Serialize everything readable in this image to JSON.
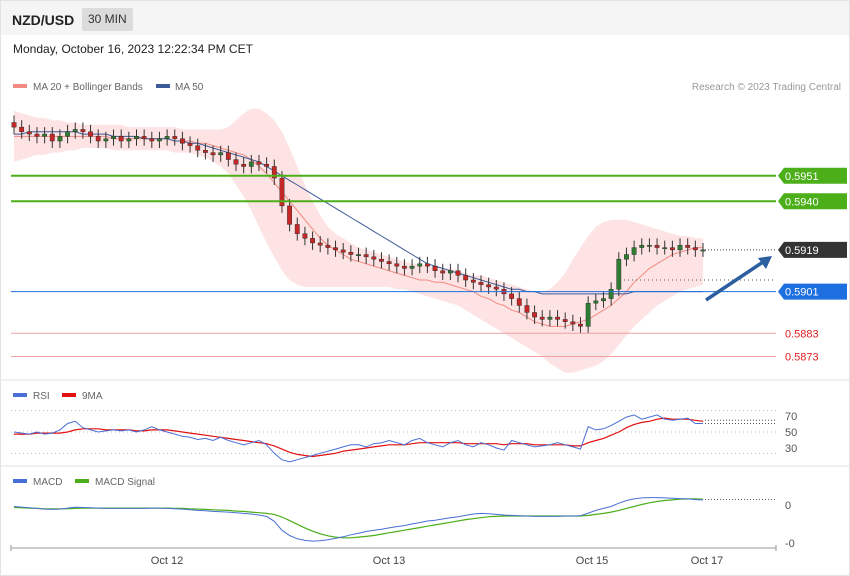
{
  "header": {
    "symbol": "NZD/USD",
    "timeframe": "30 MIN",
    "datetime": "Monday, October 16, 2023 12:22:34 PM CET"
  },
  "colors": {
    "up": "#2e7d32",
    "down": "#c62828",
    "ma20": "#f28b82",
    "ma50": "#3d5a99",
    "band_fill": "#fde3e3",
    "support": "#1e6fe0",
    "resistance_green": "#4caf1a",
    "red_levels": "#e02020",
    "arrow": "#2c5fa0"
  },
  "price_panel": {
    "legend": [
      {
        "label": "MA 20 + Bollinger Bands",
        "icon": "ma20-swatch"
      },
      {
        "label": "MA 50",
        "icon": "ma50-swatch"
      }
    ],
    "credit": "Research © 2023 Trading Central",
    "levels": [
      {
        "value": "0.5951",
        "style": "green-solid-fill"
      },
      {
        "value": "0.5940",
        "style": "green-solid-fill"
      },
      {
        "value": "0.5919",
        "style": "dark-current"
      },
      {
        "value": "0.5901",
        "style": "blue-solid-fill"
      },
      {
        "value": "0.5883",
        "style": "red-text"
      },
      {
        "value": "0.5873",
        "style": "red-text"
      }
    ]
  },
  "rsi_panel": {
    "legend": [
      {
        "label": "RSI"
      },
      {
        "label": "9MA"
      }
    ],
    "ticks": [
      "70",
      "50",
      "30"
    ]
  },
  "macd_panel": {
    "legend": [
      {
        "label": "MACD"
      },
      {
        "label": "MACD Signal"
      }
    ],
    "ticks": [
      "0",
      "-0"
    ]
  },
  "x_axis": {
    "labels": [
      "Oct 12",
      "Oct 13",
      "Oct 15",
      "Oct 17"
    ]
  },
  "chart_data": [
    {
      "type": "line",
      "name": "price",
      "ylim": [
        0.5865,
        0.5985
      ],
      "close": [
        0.5972,
        0.597,
        0.5969,
        0.5968,
        0.5969,
        0.5966,
        0.5968,
        0.597,
        0.5971,
        0.597,
        0.5968,
        0.5966,
        0.5967,
        0.5968,
        0.5966,
        0.5967,
        0.5968,
        0.5967,
        0.5966,
        0.5967,
        0.5968,
        0.5967,
        0.5965,
        0.5964,
        0.5962,
        0.5961,
        0.596,
        0.5961,
        0.5958,
        0.5956,
        0.5955,
        0.5957,
        0.5956,
        0.5955,
        0.595,
        0.5938,
        0.593,
        0.5926,
        0.5924,
        0.5922,
        0.5921,
        0.592,
        0.5919,
        0.5918,
        0.5917,
        0.5917,
        0.5916,
        0.5915,
        0.5914,
        0.5913,
        0.5912,
        0.5911,
        0.5912,
        0.5913,
        0.5912,
        0.591,
        0.5909,
        0.591,
        0.5908,
        0.5906,
        0.5905,
        0.5904,
        0.5903,
        0.5902,
        0.59,
        0.5898,
        0.5895,
        0.5892,
        0.589,
        0.5889,
        0.589,
        0.5889,
        0.5888,
        0.5887,
        0.5886,
        0.5896,
        0.5897,
        0.5898,
        0.5902,
        0.5915,
        0.5917,
        0.592,
        0.5921,
        0.5921,
        0.592,
        0.592,
        0.5919,
        0.5921,
        0.592,
        0.5919,
        0.5919
      ],
      "ma20": [
        0.5968,
        0.5968,
        0.5968,
        0.5968,
        0.5968,
        0.5968,
        0.5968,
        0.5968,
        0.5968,
        0.5968,
        0.5968,
        0.5968,
        0.5968,
        0.5967,
        0.5967,
        0.5967,
        0.5967,
        0.5967,
        0.5967,
        0.5967,
        0.5967,
        0.5966,
        0.5966,
        0.5966,
        0.5965,
        0.5965,
        0.5964,
        0.5963,
        0.5962,
        0.5961,
        0.596,
        0.5958,
        0.5955,
        0.5952,
        0.5948,
        0.5944,
        0.594,
        0.5936,
        0.5932,
        0.5928,
        0.5924,
        0.5921,
        0.5919,
        0.5917,
        0.5915,
        0.5914,
        0.5913,
        0.5912,
        0.5911,
        0.591,
        0.5909,
        0.5908,
        0.5907,
        0.5906,
        0.5906,
        0.5905,
        0.5905,
        0.5904,
        0.5903,
        0.5902,
        0.5901,
        0.5899,
        0.5898,
        0.5896,
        0.5895,
        0.5893,
        0.5892,
        0.589,
        0.5888,
        0.5887,
        0.5886,
        0.5886,
        0.5886,
        0.5887,
        0.5888,
        0.5889,
        0.5891,
        0.5893,
        0.5895,
        0.5898,
        0.5901,
        0.5905,
        0.5908,
        0.5911,
        0.5913,
        0.5915,
        0.5917,
        0.5918,
        0.5919,
        0.592,
        0.592
      ],
      "bb_upper": [
        0.5979,
        0.5978,
        0.5977,
        0.5976,
        0.5976,
        0.5975,
        0.5975,
        0.5974,
        0.5974,
        0.5973,
        0.5973,
        0.5973,
        0.5973,
        0.5973,
        0.5973,
        0.5972,
        0.5972,
        0.5972,
        0.5972,
        0.5972,
        0.5972,
        0.5972,
        0.5971,
        0.5971,
        0.5971,
        0.5971,
        0.5971,
        0.5971,
        0.5972,
        0.5975,
        0.5978,
        0.598,
        0.598,
        0.5978,
        0.5975,
        0.597,
        0.5963,
        0.5955,
        0.5947,
        0.594,
        0.5934,
        0.5929,
        0.5926,
        0.5924,
        0.5922,
        0.592,
        0.5919,
        0.5918,
        0.5917,
        0.5916,
        0.5915,
        0.5914,
        0.5913,
        0.5913,
        0.5912,
        0.5912,
        0.5911,
        0.5911,
        0.591,
        0.5909,
        0.5908,
        0.5908,
        0.5907,
        0.5906,
        0.5905,
        0.5904,
        0.5903,
        0.5902,
        0.5901,
        0.5901,
        0.5902,
        0.5905,
        0.5909,
        0.5915,
        0.592,
        0.5925,
        0.5929,
        0.5931,
        0.5932,
        0.5932,
        0.5932,
        0.5931,
        0.593,
        0.5929,
        0.5928,
        0.5927,
        0.5926,
        0.5925,
        0.5925,
        0.5924,
        0.5924
      ],
      "bb_lower": [
        0.5957,
        0.5958,
        0.5959,
        0.596,
        0.596,
        0.5961,
        0.5961,
        0.5962,
        0.5962,
        0.5963,
        0.5963,
        0.5963,
        0.5963,
        0.5962,
        0.5962,
        0.5962,
        0.5962,
        0.5962,
        0.5962,
        0.5962,
        0.5962,
        0.5961,
        0.5961,
        0.5961,
        0.596,
        0.5959,
        0.5957,
        0.5955,
        0.5952,
        0.5947,
        0.5942,
        0.5936,
        0.5929,
        0.5922,
        0.5916,
        0.591,
        0.5906,
        0.5904,
        0.5903,
        0.5903,
        0.5903,
        0.5903,
        0.5903,
        0.5903,
        0.5903,
        0.5903,
        0.5903,
        0.5903,
        0.5903,
        0.5903,
        0.5902,
        0.5902,
        0.5901,
        0.59,
        0.5899,
        0.5898,
        0.5897,
        0.5896,
        0.5895,
        0.5893,
        0.5891,
        0.5889,
        0.5887,
        0.5885,
        0.5883,
        0.5881,
        0.5879,
        0.5877,
        0.5875,
        0.5873,
        0.587,
        0.5868,
        0.5866,
        0.5866,
        0.5867,
        0.5868,
        0.5869,
        0.5871,
        0.5874,
        0.5878,
        0.5882,
        0.5886,
        0.5889,
        0.5892,
        0.5895,
        0.5897,
        0.5899,
        0.5901,
        0.5902,
        0.5903,
        0.5904
      ],
      "ma50": [
        0.5969,
        0.5969,
        0.597,
        0.597,
        0.597,
        0.597,
        0.597,
        0.597,
        0.597,
        0.5969,
        0.5969,
        0.5969,
        0.5969,
        0.5968,
        0.5968,
        0.5968,
        0.5968,
        0.5967,
        0.5967,
        0.5967,
        0.5967,
        0.5966,
        0.5966,
        0.5965,
        0.5965,
        0.5964,
        0.5963,
        0.5962,
        0.5961,
        0.596,
        0.5959,
        0.5958,
        0.5957,
        0.5955,
        0.5953,
        0.5951,
        0.5949,
        0.5947,
        0.5945,
        0.5943,
        0.5941,
        0.5939,
        0.5937,
        0.5935,
        0.5933,
        0.5931,
        0.5929,
        0.5927,
        0.5925,
        0.5923,
        0.5921,
        0.5919,
        0.5917,
        0.5915,
        0.5913,
        0.5912,
        0.5911,
        0.591,
        0.5909,
        0.5908,
        0.5907,
        0.5906,
        0.5905,
        0.5904,
        0.5903,
        0.5902,
        0.5902,
        0.5901,
        0.5901,
        0.59,
        0.59,
        0.59,
        0.59,
        0.59,
        0.59,
        0.59,
        0.59,
        0.59,
        0.59,
        0.59,
        0.59,
        0.5901,
        0.5901,
        0.5901,
        0.5901,
        0.5901,
        0.5901,
        0.5901,
        0.5901,
        0.5901,
        0.5901
      ]
    },
    {
      "type": "line",
      "name": "RSI",
      "ylim": [
        20,
        80
      ],
      "rsi": [
        50,
        49,
        48,
        50,
        48,
        49,
        52,
        58,
        60,
        54,
        52,
        50,
        51,
        52,
        51,
        52,
        50,
        52,
        55,
        52,
        50,
        48,
        46,
        45,
        43,
        44,
        42,
        45,
        42,
        40,
        38,
        40,
        42,
        38,
        30,
        24,
        22,
        24,
        26,
        28,
        30,
        32,
        34,
        36,
        38,
        38,
        36,
        39,
        40,
        42,
        40,
        38,
        42,
        44,
        40,
        38,
        36,
        40,
        42,
        38,
        36,
        40,
        38,
        35,
        33,
        42,
        40,
        38,
        36,
        37,
        38,
        40,
        38,
        36,
        34,
        55,
        52,
        53,
        56,
        60,
        64,
        66,
        62,
        64,
        66,
        62,
        61,
        62,
        63,
        58,
        58
      ],
      "ma9": [
        48,
        48,
        48,
        49,
        49,
        49,
        49,
        50,
        52,
        53,
        53,
        53,
        52,
        52,
        52,
        52,
        51,
        51,
        52,
        52,
        52,
        51,
        50,
        49,
        48,
        47,
        46,
        45,
        44,
        43,
        42,
        41,
        40,
        39,
        37,
        34,
        31,
        29,
        28,
        27,
        28,
        29,
        30,
        32,
        33,
        34,
        35,
        36,
        37,
        38,
        38,
        38,
        39,
        40,
        40,
        40,
        40,
        40,
        40,
        39,
        39,
        39,
        39,
        39,
        38,
        39,
        39,
        39,
        38,
        38,
        38,
        38,
        38,
        37,
        37,
        40,
        42,
        44,
        47,
        50,
        54,
        57,
        59,
        60,
        62,
        63,
        62,
        62,
        62,
        61,
        60
      ]
    },
    {
      "type": "line",
      "name": "MACD",
      "ylim": [
        -1.2,
        0.5
      ],
      "macd": [
        0.0,
        -0.02,
        -0.04,
        -0.06,
        -0.08,
        -0.09,
        -0.08,
        -0.05,
        -0.02,
        -0.03,
        -0.04,
        -0.05,
        -0.06,
        -0.06,
        -0.06,
        -0.06,
        -0.06,
        -0.06,
        -0.05,
        -0.05,
        -0.06,
        -0.07,
        -0.08,
        -0.1,
        -0.12,
        -0.13,
        -0.15,
        -0.16,
        -0.17,
        -0.19,
        -0.21,
        -0.23,
        -0.26,
        -0.3,
        -0.45,
        -0.72,
        -0.88,
        -0.98,
        -1.03,
        -1.05,
        -1.04,
        -1.01,
        -0.97,
        -0.92,
        -0.86,
        -0.81,
        -0.76,
        -0.72,
        -0.69,
        -0.65,
        -0.61,
        -0.58,
        -0.53,
        -0.49,
        -0.44,
        -0.42,
        -0.38,
        -0.34,
        -0.31,
        -0.27,
        -0.23,
        -0.21,
        -0.22,
        -0.24,
        -0.26,
        -0.27,
        -0.28,
        -0.29,
        -0.3,
        -0.3,
        -0.3,
        -0.3,
        -0.29,
        -0.29,
        -0.28,
        -0.2,
        -0.12,
        -0.06,
        0.0,
        0.1,
        0.18,
        0.23,
        0.26,
        0.27,
        0.27,
        0.26,
        0.25,
        0.24,
        0.23,
        0.21,
        0.2
      ],
      "signal": [
        -0.03,
        -0.04,
        -0.05,
        -0.06,
        -0.07,
        -0.07,
        -0.07,
        -0.07,
        -0.06,
        -0.05,
        -0.05,
        -0.05,
        -0.05,
        -0.05,
        -0.05,
        -0.05,
        -0.05,
        -0.05,
        -0.05,
        -0.05,
        -0.05,
        -0.06,
        -0.06,
        -0.07,
        -0.08,
        -0.09,
        -0.1,
        -0.11,
        -0.12,
        -0.14,
        -0.15,
        -0.17,
        -0.19,
        -0.21,
        -0.24,
        -0.32,
        -0.43,
        -0.54,
        -0.65,
        -0.75,
        -0.83,
        -0.89,
        -0.93,
        -0.95,
        -0.95,
        -0.93,
        -0.91,
        -0.88,
        -0.84,
        -0.8,
        -0.76,
        -0.72,
        -0.68,
        -0.64,
        -0.6,
        -0.56,
        -0.52,
        -0.48,
        -0.44,
        -0.4,
        -0.37,
        -0.34,
        -0.31,
        -0.3,
        -0.29,
        -0.29,
        -0.29,
        -0.29,
        -0.29,
        -0.29,
        -0.29,
        -0.29,
        -0.29,
        -0.29,
        -0.29,
        -0.27,
        -0.24,
        -0.21,
        -0.17,
        -0.12,
        -0.06,
        0.0,
        0.06,
        0.11,
        0.15,
        0.18,
        0.2,
        0.22,
        0.23,
        0.23,
        0.22
      ]
    }
  ]
}
